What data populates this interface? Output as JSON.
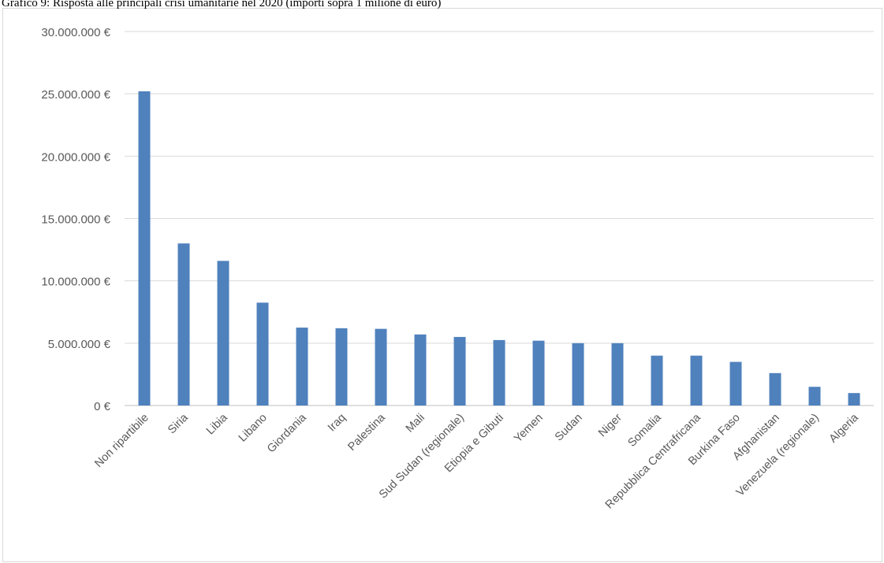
{
  "figure": {
    "title": "Grafico 9: Risposta alle principali crisi umanitarie nel 2020 (importi sopra 1 milione di euro)"
  },
  "colors": {
    "bar": "#4f81bd",
    "gridline": "#d9d9d9",
    "axis": "#bfbfbf",
    "text": "#595959"
  },
  "chart_data": {
    "type": "bar",
    "title": "",
    "xlabel": "",
    "ylabel": "",
    "ylim": [
      0,
      30000000
    ],
    "grid": true,
    "legend": "none",
    "y_tick_values": [
      0,
      5000000,
      10000000,
      15000000,
      20000000,
      25000000,
      30000000
    ],
    "y_tick_labels": [
      "0 €",
      "5.000.000 €",
      "10.000.000 €",
      "15.000.000 €",
      "20.000.000 €",
      "25.000.000 €",
      "30.000.000 €"
    ],
    "categories": [
      "Non ripartibile",
      "Siria",
      "Libia",
      "Libano",
      "Giordania",
      "Iraq",
      "Palestina",
      "Mali",
      "Sud Sudan (regionale)",
      "Etiopia e Gibuti",
      "Yemen",
      "Sudan",
      "Niger",
      "Somalia",
      "Repubblica Centrafricana",
      "Burkina Faso",
      "Afghanistan",
      "Venezuela (regionale)",
      "Algeria"
    ],
    "values": [
      25200000,
      13000000,
      11600000,
      8250000,
      6250000,
      6200000,
      6150000,
      5700000,
      5500000,
      5250000,
      5200000,
      5000000,
      5000000,
      4000000,
      4000000,
      3500000,
      2600000,
      1500000,
      1000000
    ]
  }
}
